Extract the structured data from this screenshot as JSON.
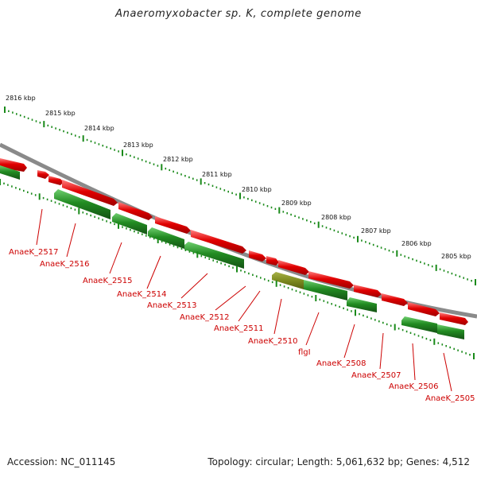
{
  "title": "Anaeromyxobacter sp. K, complete genome",
  "footer": {
    "accession": "Accession: NC_011145",
    "summary": "Topology: circular; Length: 5,061,632 bp; Genes: 4,512"
  },
  "scale": {
    "unit": "kbp",
    "labels": [
      "2816 kbp",
      "2815 kbp",
      "2814 kbp",
      "2813 kbp",
      "2812 kbp",
      "2811 kbp",
      "2810 kbp",
      "2809 kbp",
      "2808 kbp",
      "2807 kbp",
      "2806 kbp",
      "2805 kbp"
    ]
  },
  "genes": [
    {
      "name": "AnaeK_2517"
    },
    {
      "name": "AnaeK_2516"
    },
    {
      "name": "AnaeK_2515"
    },
    {
      "name": "AnaeK_2514"
    },
    {
      "name": "AnaeK_2513"
    },
    {
      "name": "AnaeK_2512"
    },
    {
      "name": "AnaeK_2511"
    },
    {
      "name": "AnaeK_2510"
    },
    {
      "name": "flgI"
    },
    {
      "name": "AnaeK_2508"
    },
    {
      "name": "AnaeK_2507"
    },
    {
      "name": "AnaeK_2506"
    },
    {
      "name": "AnaeK_2505"
    }
  ],
  "colors": {
    "forward_strand": "#e00000",
    "reverse_strand": "#228b22",
    "highlight": "#7d8a1f",
    "backbone": "#808080",
    "tick": "#1a8a1a",
    "label": "#cc0000"
  }
}
